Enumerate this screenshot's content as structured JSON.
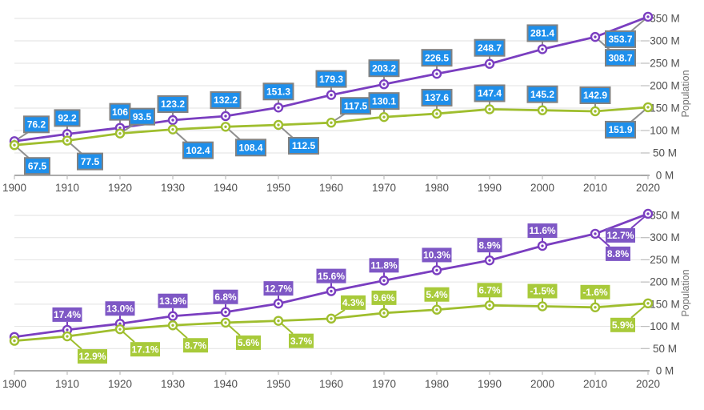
{
  "chart_data": [
    {
      "type": "line",
      "name": "population-values-chart",
      "x_labels": [
        "1900",
        "1910",
        "1920",
        "1930",
        "1940",
        "1950",
        "1960",
        "1970",
        "1980",
        "1990",
        "2000",
        "2010",
        "2020"
      ],
      "y_axis_title": "Population",
      "y_tick_labels": [
        "0 M",
        "50 M",
        "100 M",
        "150 M",
        "200 M",
        "250 M",
        "300 M",
        "350 M"
      ],
      "ylim": [
        0,
        350
      ],
      "grid": "horizontal",
      "legend": "none",
      "series": [
        {
          "name": "population-series-1",
          "color": "#7a3ec0",
          "values": [
            76.2,
            92.2,
            106,
            123.2,
            132.2,
            151.3,
            179.3,
            203.2,
            226.5,
            248.7,
            281.4,
            308.7,
            353.7
          ],
          "point_labels": [
            "76.2",
            "92.2",
            "106",
            "123.2",
            "132.2",
            "151.3",
            "179.3",
            "203.2",
            "226.5",
            "248.7",
            "281.4",
            "308.7",
            "353.7"
          ],
          "label_box_fill": "#1e8feb",
          "label_box_border": "#828282",
          "label_text_color": "#ffffff",
          "connector_color": "#8f8f8f",
          "label_placements": [
            "ar",
            "a",
            "a",
            "a",
            "a",
            "a",
            "a",
            "a",
            "a",
            "a",
            "a",
            "br",
            "bl"
          ]
        },
        {
          "name": "population-series-2",
          "color": "#9fbe2e",
          "values": [
            67.5,
            77.5,
            93.5,
            102.4,
            108.4,
            112.5,
            117.5,
            130.1,
            137.6,
            147.4,
            145.2,
            142.9,
            151.9
          ],
          "point_labels": [
            "67.5",
            "77.5",
            "93.5",
            "102.4",
            "108.4",
            "112.5",
            "117.5",
            "130.1",
            "137.6",
            "147.4",
            "145.2",
            "142.9",
            "151.9"
          ],
          "label_box_fill": "#1e8feb",
          "label_box_border": "#828282",
          "label_text_color": "#ffffff",
          "connector_color": "#8f8f8f",
          "label_placements": [
            "br",
            "br",
            "ar",
            "br",
            "br",
            "br",
            "ar",
            "a",
            "a",
            "a",
            "a",
            "a",
            "bl"
          ]
        }
      ]
    },
    {
      "type": "line",
      "name": "population-growth-percent-chart",
      "x_labels": [
        "1900",
        "1910",
        "1920",
        "1930",
        "1940",
        "1950",
        "1960",
        "1970",
        "1980",
        "1990",
        "2000",
        "2010",
        "2020"
      ],
      "y_axis_title": "Population",
      "y_tick_labels": [
        "0 M",
        "50 M",
        "100 M",
        "150 M",
        "200 M",
        "250 M",
        "300 M",
        "350 M"
      ],
      "ylim": [
        0,
        350
      ],
      "grid": "horizontal",
      "legend": "none",
      "series": [
        {
          "name": "growth-series-1",
          "color": "#7a3ec0",
          "values": [
            76.2,
            92.2,
            106,
            123.2,
            132.2,
            151.3,
            179.3,
            203.2,
            226.5,
            248.7,
            281.4,
            308.7,
            353.7
          ],
          "growth_percent": [
            null,
            17.4,
            13.0,
            13.9,
            6.8,
            12.7,
            15.6,
            11.8,
            10.3,
            8.9,
            11.6,
            8.8,
            12.7
          ],
          "point_labels": [
            null,
            "17.4%",
            "13.0%",
            "13.9%",
            "6.8%",
            "12.7%",
            "15.6%",
            "11.8%",
            "10.3%",
            "8.9%",
            "11.6%",
            "8.8%",
            "12.7%"
          ],
          "label_box_fill": "#7e57c5",
          "label_box_border": null,
          "label_text_color": "#ffffff",
          "connector_color": "#7a3ec0",
          "label_placements": [
            null,
            "a",
            "a",
            "a",
            "a",
            "a",
            "a",
            "a",
            "a",
            "a",
            "a",
            "br",
            "bl"
          ]
        },
        {
          "name": "growth-series-2",
          "color": "#9fbe2e",
          "values": [
            67.5,
            77.5,
            93.5,
            102.4,
            108.4,
            112.5,
            117.5,
            130.1,
            137.6,
            147.4,
            145.2,
            142.9,
            151.9
          ],
          "growth_percent": [
            null,
            12.9,
            17.1,
            8.7,
            5.6,
            3.7,
            4.3,
            9.6,
            5.4,
            6.7,
            -1.5,
            -1.6,
            5.9
          ],
          "point_labels": [
            null,
            "12.9%",
            "17.1%",
            "8.7%",
            "5.6%",
            "3.7%",
            "4.3%",
            "9.6%",
            "5.4%",
            "6.7%",
            "-1.5%",
            "-1.6%",
            "5.9%"
          ],
          "label_box_fill": "#a8ca3a",
          "label_box_border": null,
          "label_text_color": "#ffffff",
          "connector_color": "#9fbe2e",
          "label_placements": [
            null,
            "br",
            "br",
            "br",
            "br",
            "br",
            "ar",
            "a",
            "a",
            "a",
            "a",
            "a",
            "bl"
          ]
        }
      ]
    }
  ],
  "axis_style": {
    "grid_color": "#e2e2e2",
    "axis_line_color": "#8f8f8f",
    "tick_color": "#bdbdbd",
    "tick_label_color": "#4f4f4f",
    "axis_title_color": "#707070"
  }
}
